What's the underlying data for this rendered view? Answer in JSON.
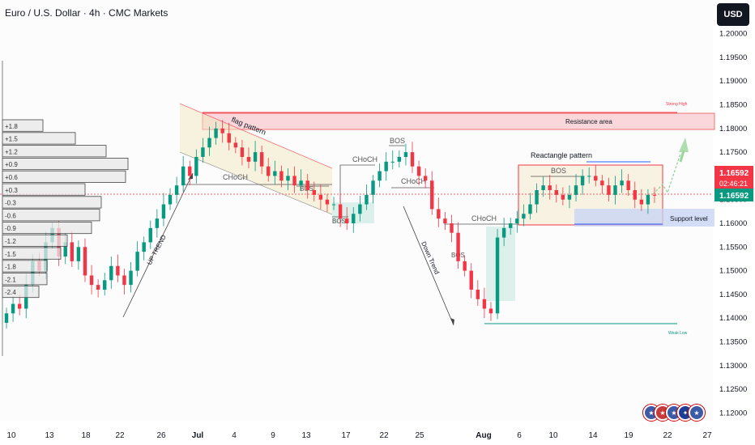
{
  "title": "Euro / U.S. Dollar · 4h · CMC Markets",
  "currency_button": "USD",
  "colors": {
    "up": "#089981",
    "down": "#f23645",
    "resistance": "#f2a0a8",
    "support": "#b7c8ee",
    "blue_line": "#2962ff",
    "current": "#f23645"
  },
  "price_axis": {
    "ticks": [
      "1.20000",
      "1.19500",
      "1.19000",
      "1.18500",
      "1.18000",
      "1.17500",
      "1.17000",
      "1.16500",
      "1.16000",
      "1.15500",
      "1.15000",
      "1.14500",
      "1.14000",
      "1.13500",
      "1.13000",
      "1.12500",
      "1.12000"
    ],
    "current_price_top": "1.16592",
    "countdown": "02:46:21",
    "current_price_bottom": "1.16592"
  },
  "time_axis": {
    "labels": [
      "10",
      "13",
      "18",
      "22",
      "26",
      "Jul",
      "4",
      "9",
      "13",
      "17",
      "22",
      "25",
      "Aug",
      "6",
      "10",
      "14",
      "19",
      "22",
      "27"
    ],
    "bold": [
      "Jul",
      "Aug"
    ]
  },
  "profile": {
    "labels": [
      "+1.8",
      "+1.5",
      "+1.2",
      "+0.9",
      "+0.6",
      "+0.3",
      "-0.3",
      "-0.6",
      "-0.9",
      "-1.2",
      "-1.5",
      "-1.8",
      "-2.1",
      "-2.4"
    ],
    "lengths": [
      50,
      90,
      128,
      155,
      152,
      102,
      122,
      120,
      110,
      80,
      72,
      55,
      55,
      45
    ]
  },
  "annotations": {
    "flag_pattern": "flag pattern",
    "up_trend": "UP TREND",
    "down_trend": "Down Trend",
    "resistance_area": "Resistance area",
    "rectangle_pattern": "Reactangle pattern",
    "support_level": "Support level",
    "strong_high": "Strong High",
    "weak_low": "Weak Low",
    "choch1": "CHoCH",
    "choch2": "CHoCH",
    "choch3": "CHoCH",
    "choch4": "CHoCH",
    "bos1": "BOS",
    "bos2": "BOS",
    "bos3": "BOS",
    "bos4": "BOS",
    "bos5": "BOS"
  },
  "chart_data": {
    "type": "candlestick",
    "symbol": "Euro / U.S. Dollar",
    "timeframe": "4h",
    "ylim": [
      1.1175,
      1.2025
    ],
    "close_series": [
      1.141,
      1.143,
      1.142,
      1.147,
      1.152,
      1.15,
      1.156,
      1.159,
      1.153,
      1.156,
      1.152,
      1.155,
      1.149,
      1.147,
      1.146,
      1.148,
      1.151,
      1.149,
      1.147,
      1.15,
      1.154,
      1.156,
      1.159,
      1.161,
      1.164,
      1.166,
      1.168,
      1.172,
      1.17,
      1.174,
      1.176,
      1.178,
      1.18,
      1.179,
      1.177,
      1.176,
      1.174,
      1.173,
      1.175,
      1.172,
      1.17,
      1.171,
      1.169,
      1.17,
      1.168,
      1.169,
      1.167,
      1.166,
      1.165,
      1.164,
      1.164,
      1.161,
      1.16,
      1.162,
      1.164,
      1.166,
      1.169,
      1.171,
      1.173,
      1.173,
      1.174,
      1.175,
      1.172,
      1.17,
      1.169,
      1.163,
      1.161,
      1.16,
      1.158,
      1.152,
      1.15,
      1.146,
      1.144,
      1.142,
      1.141,
      1.157,
      1.159,
      1.16,
      1.161,
      1.162,
      1.164,
      1.167,
      1.168,
      1.167,
      1.166,
      1.165,
      1.166,
      1.168,
      1.17,
      1.17,
      1.169,
      1.168,
      1.166,
      1.168,
      1.169,
      1.167,
      1.165,
      1.164,
      1.166,
      1.1659
    ]
  }
}
